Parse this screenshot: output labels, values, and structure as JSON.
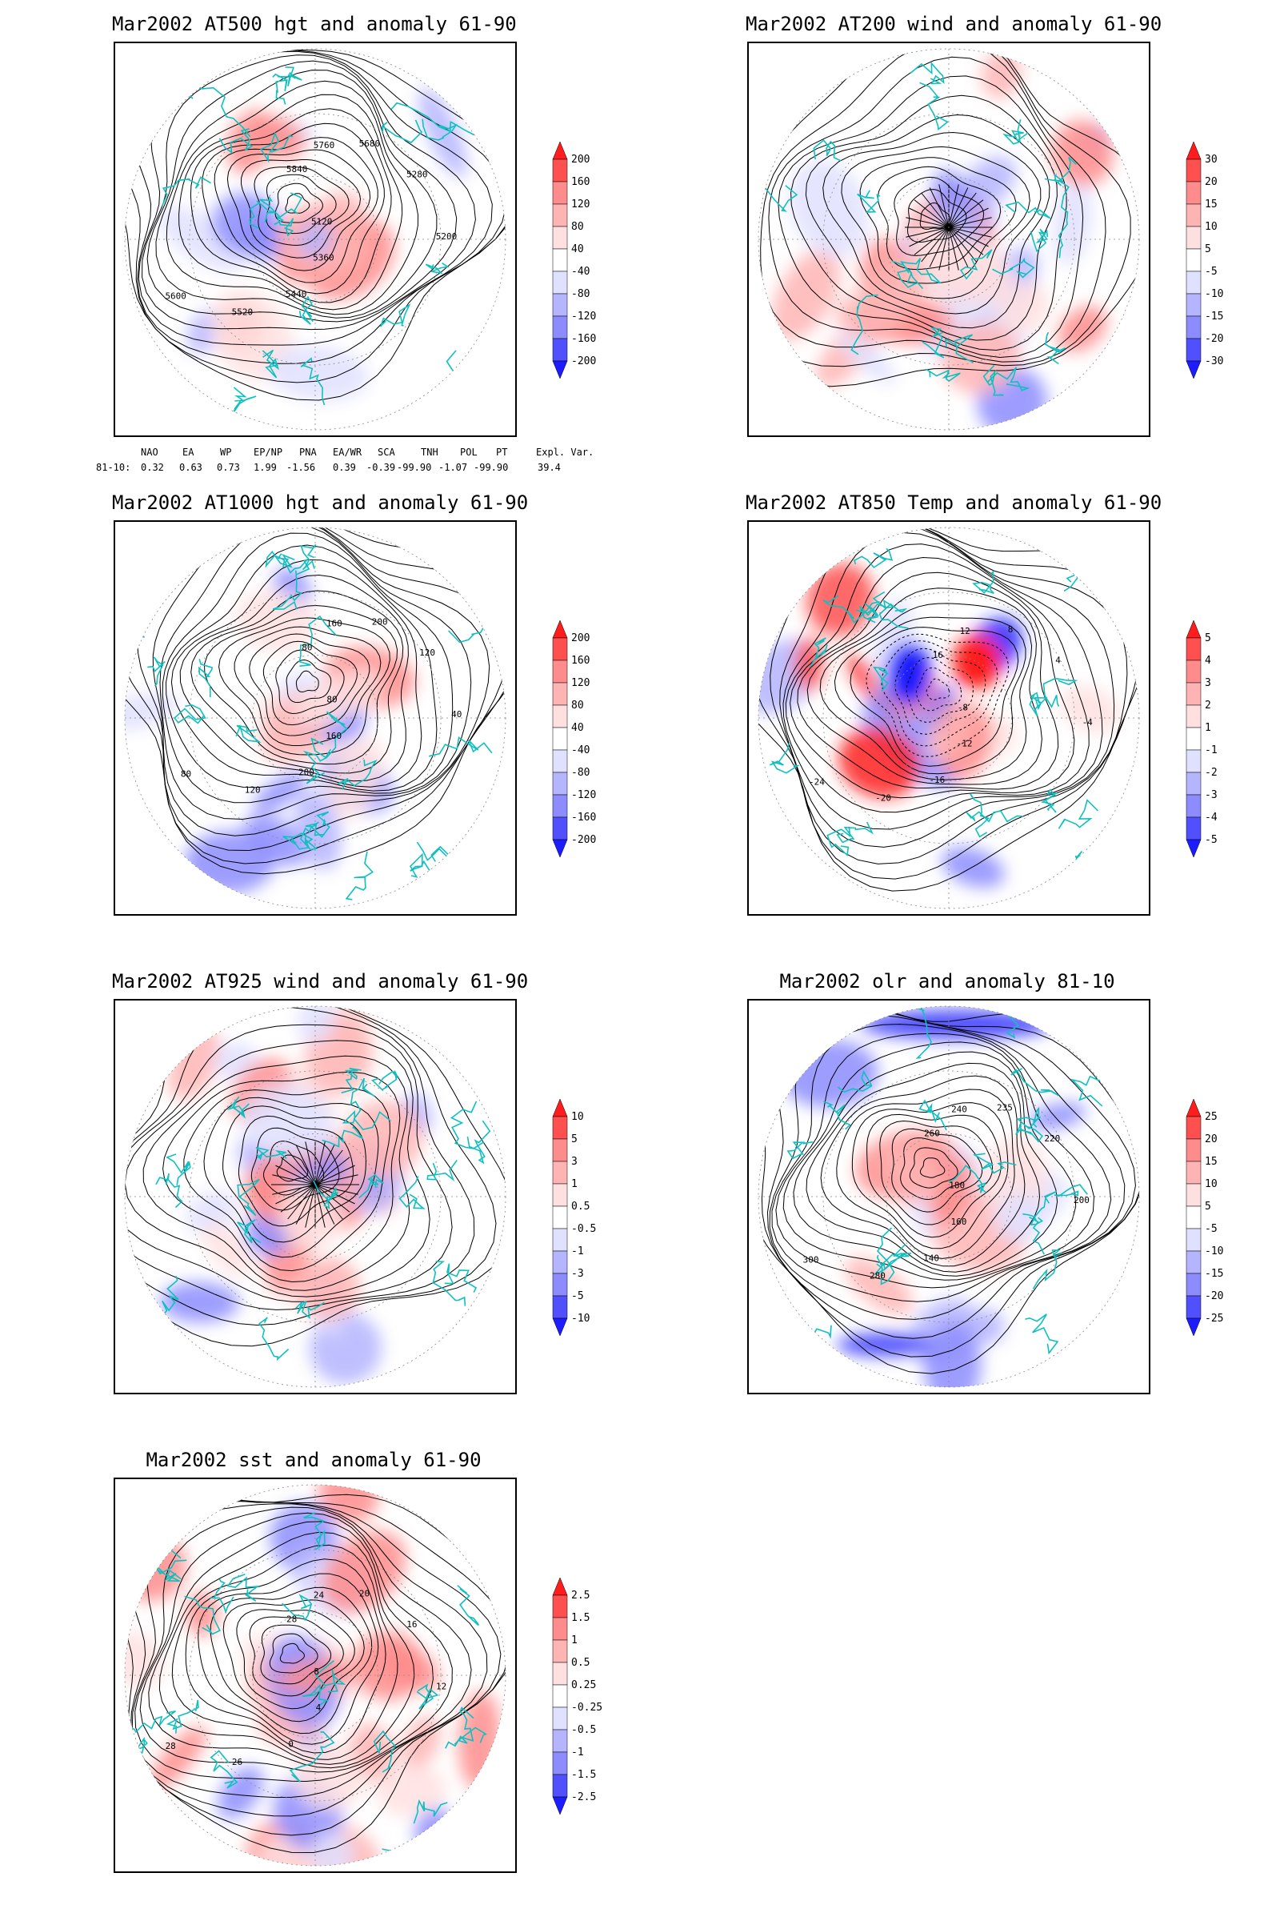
{
  "colors": {
    "red_scale": [
      "#ffe0e0",
      "#ffb4b4",
      "#ff8c8c",
      "#ff5050",
      "#ff1c1c"
    ],
    "blue_scale": [
      "#e0e0ff",
      "#b4b4ff",
      "#8c8cff",
      "#5050ff",
      "#1c1cff"
    ],
    "coast": "#10c0c0",
    "contour": "#000000"
  },
  "panels": [
    {
      "id": "p500",
      "title": "Mar2002 AT500 hgt and anomaly 61-90",
      "colorbar": [
        "200",
        "160",
        "120",
        "80",
        "40",
        "-40",
        "-80",
        "-120",
        "-160",
        "-200"
      ],
      "contour_labels": [
        "5840",
        "5760",
        "5680",
        "5280",
        "5200",
        "5120",
        "5360",
        "5440",
        "5520",
        "5600"
      ],
      "kind": "hgt"
    },
    {
      "id": "p200",
      "title": "Mar2002 AT200 wind and anomaly 61-90",
      "colorbar": [
        "30",
        "20",
        "15",
        "10",
        "5",
        "-5",
        "-10",
        "-15",
        "-20",
        "-30"
      ],
      "contour_labels": [],
      "kind": "wind"
    },
    {
      "id": "p1000",
      "title": "Mar2002 AT1000 hgt and anomaly 61-90",
      "colorbar": [
        "200",
        "160",
        "120",
        "80",
        "40",
        "-40",
        "-80",
        "-120",
        "-160",
        "-200"
      ],
      "contour_labels": [
        "80",
        "160",
        "200",
        "120",
        "40",
        "80",
        "160",
        "200",
        "120",
        "80"
      ],
      "kind": "hgt"
    },
    {
      "id": "p850",
      "title": "Mar2002 AT850 Temp and anomaly 61-90",
      "colorbar": [
        "5",
        "4",
        "3",
        "2",
        "1",
        "-1",
        "-2",
        "-3",
        "-4",
        "-5"
      ],
      "contour_labels": [
        "16",
        "12",
        "8",
        "4",
        "-4",
        "-8",
        "-12",
        "-16",
        "-20",
        "-24"
      ],
      "kind": "temp"
    },
    {
      "id": "p925",
      "title": "Mar2002 AT925 wind and anomaly 61-90",
      "colorbar": [
        "10",
        "5",
        "3",
        "1",
        "0.5",
        "-0.5",
        "-1",
        "-3",
        "-5",
        "-10"
      ],
      "contour_labels": [],
      "kind": "wind"
    },
    {
      "id": "polr",
      "title": "Mar2002 olr and anomaly 81-10",
      "colorbar": [
        "25",
        "20",
        "15",
        "10",
        "5",
        "-5",
        "-10",
        "-15",
        "-20",
        "-25"
      ],
      "contour_labels": [
        "260",
        "240",
        "235",
        "220",
        "200",
        "180",
        "160",
        "140",
        "280",
        "300"
      ],
      "kind": "olr"
    },
    {
      "id": "psst",
      "title": "Mar2002 sst and anomaly 61-90",
      "colorbar": [
        "2.5",
        "1.5",
        "1",
        "0.5",
        "0.25",
        "-0.25",
        "-0.5",
        "-1",
        "-1.5",
        "-2.5"
      ],
      "contour_labels": [
        "28",
        "24",
        "20",
        "16",
        "12",
        "8",
        "4",
        "0",
        "26",
        "28"
      ],
      "kind": "sst"
    }
  ],
  "indices": {
    "headers": [
      "NAO",
      "EA",
      "WP",
      "EP/NP",
      "PNA",
      "EA/WR",
      "SCA",
      "TNH",
      "POL",
      "PT",
      "Expl. Var."
    ],
    "row_label": "81-10:",
    "values": [
      "0.32",
      "0.63",
      "0.73",
      "1.99",
      "-1.56",
      "0.39",
      "-0.39",
      "-99.90",
      "-1.07",
      "-99.90",
      "39.4"
    ]
  },
  "chart_data": [
    {
      "type": "heatmap",
      "title": "Mar2002 AT500 hgt and anomaly 61-90",
      "levels": [
        -200,
        -160,
        -120,
        -80,
        -40,
        40,
        80,
        120,
        160,
        200
      ],
      "contours": [
        5120,
        5200,
        5280,
        5360,
        5440,
        5520,
        5600,
        5680,
        5760,
        5840
      ]
    },
    {
      "type": "heatmap",
      "title": "Mar2002 AT200 wind and anomaly 61-90",
      "levels": [
        -30,
        -20,
        -15,
        -10,
        -5,
        5,
        10,
        15,
        20,
        30
      ]
    },
    {
      "type": "heatmap",
      "title": "Mar2002 AT1000 hgt and anomaly 61-90",
      "levels": [
        -200,
        -160,
        -120,
        -80,
        -40,
        40,
        80,
        120,
        160,
        200
      ],
      "contours": [
        40,
        80,
        120,
        160,
        200
      ]
    },
    {
      "type": "heatmap",
      "title": "Mar2002 AT850 Temp and anomaly 61-90",
      "levels": [
        -5,
        -4,
        -3,
        -2,
        -1,
        1,
        2,
        3,
        4,
        5
      ],
      "contours": [
        -24,
        -20,
        -16,
        -12,
        -8,
        -4,
        4,
        8,
        12,
        16,
        20,
        24
      ]
    },
    {
      "type": "heatmap",
      "title": "Mar2002 AT925 wind and anomaly 61-90",
      "levels": [
        -10,
        -5,
        -3,
        -1,
        -0.5,
        0.5,
        1,
        3,
        5,
        10
      ]
    },
    {
      "type": "heatmap",
      "title": "Mar2002 olr and anomaly 81-10",
      "levels": [
        -25,
        -20,
        -15,
        -10,
        -5,
        5,
        10,
        15,
        20,
        25
      ],
      "contours": [
        140,
        160,
        180,
        200,
        220,
        235,
        240,
        260,
        280,
        300
      ]
    },
    {
      "type": "heatmap",
      "title": "Mar2002 sst and anomaly 61-90",
      "levels": [
        -2.5,
        -1.5,
        -1,
        -0.5,
        -0.25,
        0.25,
        0.5,
        1,
        1.5,
        2.5
      ],
      "contours": [
        0,
        4,
        8,
        12,
        16,
        20,
        24,
        26,
        28
      ]
    }
  ]
}
